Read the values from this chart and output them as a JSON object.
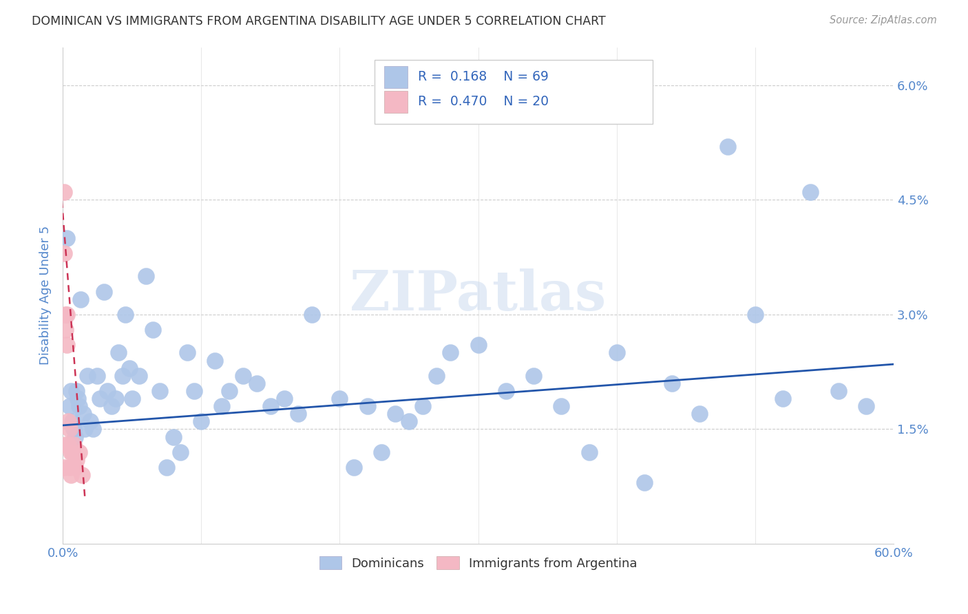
{
  "title": "DOMINICAN VS IMMIGRANTS FROM ARGENTINA DISABILITY AGE UNDER 5 CORRELATION CHART",
  "source": "Source: ZipAtlas.com",
  "ylabel": "Disability Age Under 5",
  "xmin": 0.0,
  "xmax": 0.6,
  "ymin": 0.0,
  "ymax": 0.065,
  "yticks": [
    0.0,
    0.015,
    0.03,
    0.045,
    0.06
  ],
  "ytick_labels": [
    "",
    "1.5%",
    "3.0%",
    "4.5%",
    "6.0%"
  ],
  "legend_r1": "R =  0.168",
  "legend_n1": "N = 69",
  "legend_r2": "R =  0.470",
  "legend_n2": "N = 20",
  "blue_color": "#aec6e8",
  "pink_color": "#f4b8c4",
  "line_blue": "#2255aa",
  "line_pink": "#cc3355",
  "title_color": "#404040",
  "axis_color": "#5588cc",
  "text_color": "#3366bb",
  "watermark": "ZIPatlas",
  "blue_trend_x": [
    0.0,
    0.6
  ],
  "blue_trend_y": [
    0.0155,
    0.0235
  ],
  "pink_trend_x": [
    -0.002,
    0.016
  ],
  "pink_trend_y": [
    0.048,
    0.006
  ],
  "dominicans_x": [
    0.003,
    0.005,
    0.006,
    0.007,
    0.008,
    0.009,
    0.01,
    0.011,
    0.012,
    0.013,
    0.015,
    0.016,
    0.018,
    0.02,
    0.022,
    0.025,
    0.027,
    0.03,
    0.032,
    0.035,
    0.038,
    0.04,
    0.043,
    0.045,
    0.048,
    0.05,
    0.055,
    0.06,
    0.065,
    0.07,
    0.075,
    0.08,
    0.085,
    0.09,
    0.095,
    0.1,
    0.11,
    0.115,
    0.12,
    0.13,
    0.14,
    0.15,
    0.16,
    0.17,
    0.18,
    0.2,
    0.21,
    0.22,
    0.23,
    0.24,
    0.25,
    0.26,
    0.27,
    0.28,
    0.3,
    0.32,
    0.34,
    0.36,
    0.38,
    0.4,
    0.42,
    0.44,
    0.46,
    0.48,
    0.5,
    0.52,
    0.54,
    0.56,
    0.58
  ],
  "dominicans_y": [
    0.04,
    0.018,
    0.02,
    0.016,
    0.015,
    0.014,
    0.02,
    0.019,
    0.018,
    0.032,
    0.017,
    0.015,
    0.022,
    0.016,
    0.015,
    0.022,
    0.019,
    0.033,
    0.02,
    0.018,
    0.019,
    0.025,
    0.022,
    0.03,
    0.023,
    0.019,
    0.022,
    0.035,
    0.028,
    0.02,
    0.01,
    0.014,
    0.012,
    0.025,
    0.02,
    0.016,
    0.024,
    0.018,
    0.02,
    0.022,
    0.021,
    0.018,
    0.019,
    0.017,
    0.03,
    0.019,
    0.01,
    0.018,
    0.012,
    0.017,
    0.016,
    0.018,
    0.022,
    0.025,
    0.026,
    0.02,
    0.022,
    0.018,
    0.012,
    0.025,
    0.008,
    0.021,
    0.017,
    0.052,
    0.03,
    0.019,
    0.046,
    0.02,
    0.018
  ],
  "argentina_x": [
    0.001,
    0.001,
    0.001,
    0.002,
    0.002,
    0.002,
    0.003,
    0.003,
    0.004,
    0.004,
    0.005,
    0.005,
    0.006,
    0.006,
    0.007,
    0.008,
    0.009,
    0.01,
    0.012,
    0.014
  ],
  "argentina_y": [
    0.046,
    0.038,
    0.01,
    0.03,
    0.028,
    0.013,
    0.03,
    0.026,
    0.016,
    0.013,
    0.015,
    0.01,
    0.012,
    0.009,
    0.012,
    0.013,
    0.01,
    0.011,
    0.012,
    0.009
  ]
}
